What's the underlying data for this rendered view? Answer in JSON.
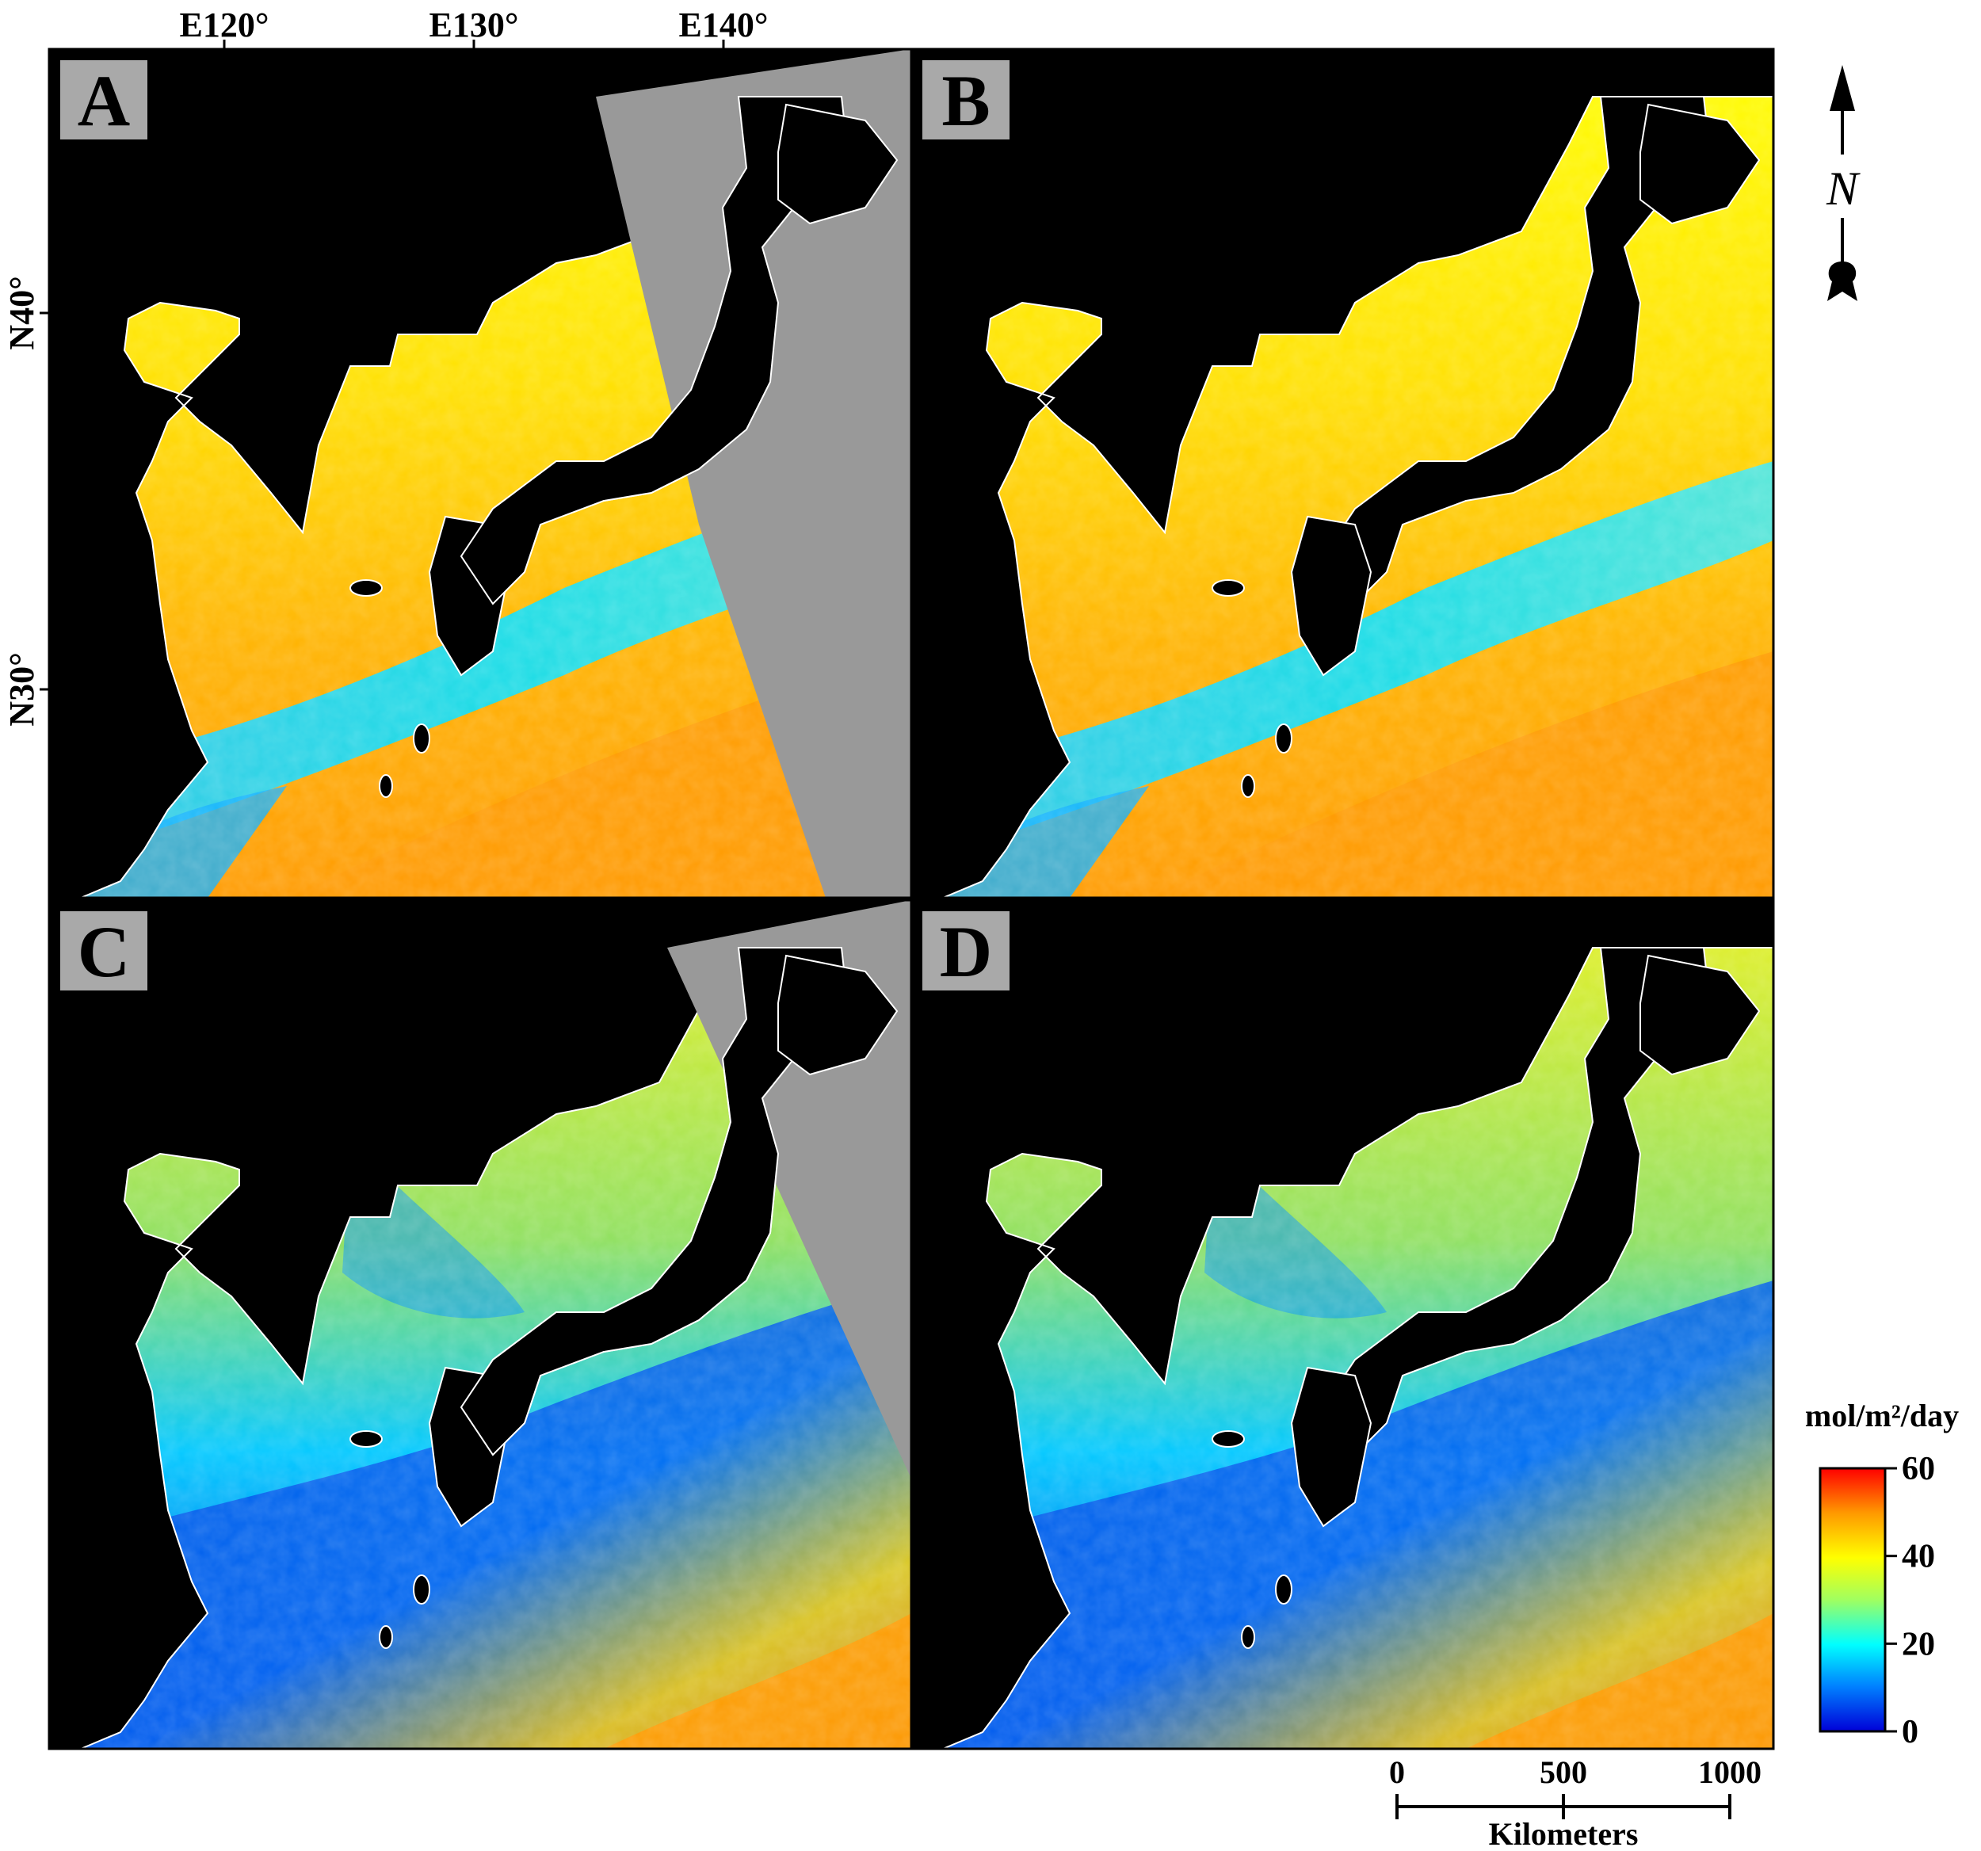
{
  "axes": {
    "longitude_labels": [
      "E120°",
      "E130°",
      "E140°"
    ],
    "latitude_labels": [
      "N40°",
      "N30°"
    ]
  },
  "panels": [
    {
      "id": "A",
      "label": "A",
      "swath_gap": true
    },
    {
      "id": "B",
      "label": "B",
      "swath_gap": false
    },
    {
      "id": "C",
      "label": "C",
      "swath_gap": true
    },
    {
      "id": "D",
      "label": "D",
      "swath_gap": false
    }
  ],
  "north_arrow": {
    "label": "N"
  },
  "colorbar": {
    "title": "mol/m²/day",
    "ticks": [
      "60",
      "40",
      "20",
      "0"
    ],
    "range": [
      0,
      60
    ],
    "colors": [
      "#0000d8",
      "#0080ff",
      "#00ffff",
      "#a0ff60",
      "#ffff00",
      "#ff9900",
      "#ff0000"
    ]
  },
  "scale_bar": {
    "ticks": [
      "0",
      "500",
      "1000"
    ],
    "unit": "Kilometers"
  },
  "colors": {
    "land": "#000000",
    "no_data": "#999999",
    "coast": "#ffffff",
    "label_box": "#a9a9a9"
  }
}
